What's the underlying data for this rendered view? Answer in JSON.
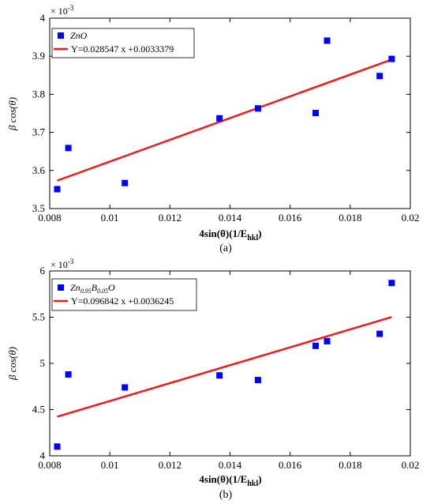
{
  "colors": {
    "marker": "#0000ff",
    "fit": "#ee1c1c",
    "axis": "#000000"
  },
  "chart_data": [
    {
      "type": "scatter",
      "caption": "(a)",
      "xlabel": "4sin(θ)(1/E",
      "xlabel_sub": "hkl",
      "xlabel_close": ")",
      "ylabel": "β cos(θ)",
      "y_exponent_base": "× 10",
      "y_exponent": "-3",
      "xlim": [
        0.008,
        0.02
      ],
      "ylim": [
        3.5,
        4.0
      ],
      "xticks": [
        "0.008",
        "0.01",
        "0.012",
        "0.014",
        "0.016",
        "0.018",
        "0.02"
      ],
      "yticks": [
        "3.5",
        "3.6",
        "3.7",
        "3.8",
        "3.9",
        "4"
      ],
      "xtick_values": [
        0.008,
        0.01,
        0.012,
        0.014,
        0.016,
        0.018,
        0.02
      ],
      "ytick_values": [
        3.5,
        3.6,
        3.7,
        3.8,
        3.9,
        4.0
      ],
      "legend_position": "top-left",
      "series": [
        {
          "name": "ZnO",
          "marker": "square",
          "x": [
            0.00825,
            0.00862,
            0.0105,
            0.01365,
            0.01493,
            0.01685,
            0.01723,
            0.01898,
            0.01938
          ],
          "y": [
            3.551,
            3.659,
            3.567,
            3.737,
            3.763,
            3.751,
            3.941,
            3.848,
            3.893
          ]
        }
      ],
      "fit": {
        "label": "Y=0.028547 x +0.0033379",
        "x": [
          0.00825,
          0.01938
        ],
        "y": [
          3.5734,
          3.8912
        ]
      }
    },
    {
      "type": "scatter",
      "caption": "(b)",
      "xlabel": "4sin(θ)(1/E",
      "xlabel_sub": "hkl",
      "xlabel_close": ")",
      "ylabel": "β cos(θ)",
      "y_exponent_base": "× 10",
      "y_exponent": "-3",
      "xlim": [
        0.008,
        0.02
      ],
      "ylim": [
        4.0,
        6.0
      ],
      "xticks": [
        "0.008",
        "0.01",
        "0.012",
        "0.014",
        "0.016",
        "0.018",
        "0.02"
      ],
      "yticks": [
        "4",
        "4.5",
        "5",
        "5.5",
        "6"
      ],
      "xtick_values": [
        0.008,
        0.01,
        0.012,
        0.014,
        0.016,
        0.018,
        0.02
      ],
      "ytick_values": [
        4.0,
        4.5,
        5.0,
        5.5,
        6.0
      ],
      "legend_position": "top-left",
      "series": [
        {
          "name": "Zn0.95B0.05O",
          "name_parts": [
            "Zn",
            "0.95",
            "B",
            "0.05",
            "O"
          ],
          "marker": "square",
          "x": [
            0.00825,
            0.00862,
            0.0105,
            0.01365,
            0.01493,
            0.01685,
            0.01723,
            0.01898,
            0.01938
          ],
          "y": [
            4.1,
            4.88,
            4.74,
            4.87,
            4.82,
            5.19,
            5.24,
            5.32,
            5.87
          ]
        }
      ],
      "fit": {
        "label": "Y=0.096842 x +0.0036245",
        "x": [
          0.00825,
          0.01938
        ],
        "y": [
          4.4234,
          5.5012
        ]
      }
    }
  ]
}
